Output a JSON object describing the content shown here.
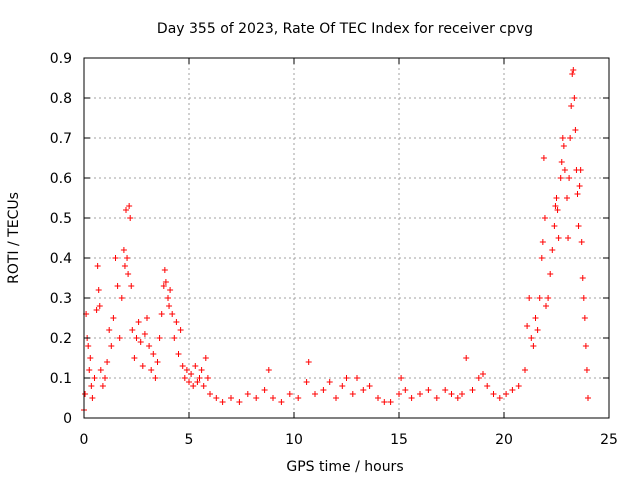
{
  "chart_data": {
    "type": "scatter",
    "title": "Day 355 of 2023, Rate Of TEC Index for receiver cpvg",
    "xlabel": "GPS time / hours",
    "ylabel": "ROTI / TECUs",
    "xlim": [
      0,
      25
    ],
    "ylim": [
      0,
      0.9
    ],
    "x_ticks": [
      0,
      5,
      10,
      15,
      20,
      25
    ],
    "y_ticks": [
      0,
      0.1,
      0.2,
      0.3,
      0.4,
      0.5,
      0.6,
      0.7,
      0.8,
      0.9
    ],
    "x_tick_labels": [
      "0",
      "5",
      "10",
      "15",
      "20",
      "25"
    ],
    "y_tick_labels": [
      "0",
      "0.1",
      "0.2",
      "0.3",
      "0.4",
      "0.5",
      "0.6",
      "0.7",
      "0.8",
      "0.9"
    ],
    "grid": true,
    "marker": "plus",
    "color": "#ff0000",
    "series": [
      {
        "points": [
          [
            0.0,
            0.02
          ],
          [
            0.05,
            0.06
          ],
          [
            0.1,
            0.26
          ],
          [
            0.15,
            0.2
          ],
          [
            0.2,
            0.18
          ],
          [
            0.25,
            0.12
          ],
          [
            0.3,
            0.15
          ],
          [
            0.35,
            0.08
          ],
          [
            0.4,
            0.05
          ],
          [
            0.5,
            0.1
          ],
          [
            0.6,
            0.27
          ],
          [
            0.65,
            0.38
          ],
          [
            0.7,
            0.32
          ],
          [
            0.75,
            0.28
          ],
          [
            0.8,
            0.12
          ],
          [
            0.9,
            0.08
          ],
          [
            1.0,
            0.1
          ],
          [
            1.1,
            0.14
          ],
          [
            1.2,
            0.22
          ],
          [
            1.3,
            0.18
          ],
          [
            1.4,
            0.25
          ],
          [
            1.5,
            0.4
          ],
          [
            1.6,
            0.33
          ],
          [
            1.7,
            0.2
          ],
          [
            1.8,
            0.3
          ],
          [
            1.9,
            0.42
          ],
          [
            1.95,
            0.38
          ],
          [
            2.0,
            0.52
          ],
          [
            2.05,
            0.4
          ],
          [
            2.1,
            0.36
          ],
          [
            2.15,
            0.53
          ],
          [
            2.2,
            0.5
          ],
          [
            2.25,
            0.33
          ],
          [
            2.3,
            0.22
          ],
          [
            2.4,
            0.15
          ],
          [
            2.5,
            0.2
          ],
          [
            2.6,
            0.24
          ],
          [
            2.7,
            0.19
          ],
          [
            2.8,
            0.13
          ],
          [
            2.9,
            0.21
          ],
          [
            3.0,
            0.25
          ],
          [
            3.1,
            0.18
          ],
          [
            3.2,
            0.12
          ],
          [
            3.3,
            0.16
          ],
          [
            3.4,
            0.1
          ],
          [
            3.5,
            0.14
          ],
          [
            3.6,
            0.2
          ],
          [
            3.7,
            0.26
          ],
          [
            3.8,
            0.33
          ],
          [
            3.85,
            0.37
          ],
          [
            3.9,
            0.34
          ],
          [
            4.0,
            0.3
          ],
          [
            4.05,
            0.28
          ],
          [
            4.1,
            0.32
          ],
          [
            4.2,
            0.26
          ],
          [
            4.3,
            0.2
          ],
          [
            4.4,
            0.24
          ],
          [
            4.5,
            0.16
          ],
          [
            4.6,
            0.22
          ],
          [
            4.7,
            0.13
          ],
          [
            4.8,
            0.1
          ],
          [
            4.9,
            0.12
          ],
          [
            5.0,
            0.09
          ],
          [
            5.1,
            0.11
          ],
          [
            5.2,
            0.08
          ],
          [
            5.3,
            0.13
          ],
          [
            5.4,
            0.09
          ],
          [
            5.5,
            0.1
          ],
          [
            5.6,
            0.12
          ],
          [
            5.7,
            0.08
          ],
          [
            5.8,
            0.15
          ],
          [
            5.9,
            0.1
          ],
          [
            6.0,
            0.06
          ],
          [
            6.3,
            0.05
          ],
          [
            6.6,
            0.04
          ],
          [
            7.0,
            0.05
          ],
          [
            7.4,
            0.04
          ],
          [
            7.8,
            0.06
          ],
          [
            8.2,
            0.05
          ],
          [
            8.6,
            0.07
          ],
          [
            8.8,
            0.12
          ],
          [
            9.0,
            0.05
          ],
          [
            9.4,
            0.04
          ],
          [
            9.8,
            0.06
          ],
          [
            10.2,
            0.05
          ],
          [
            10.6,
            0.09
          ],
          [
            10.7,
            0.14
          ],
          [
            11.0,
            0.06
          ],
          [
            11.4,
            0.07
          ],
          [
            11.7,
            0.09
          ],
          [
            12.0,
            0.05
          ],
          [
            12.3,
            0.08
          ],
          [
            12.5,
            0.1
          ],
          [
            12.8,
            0.06
          ],
          [
            13.0,
            0.1
          ],
          [
            13.3,
            0.07
          ],
          [
            13.6,
            0.08
          ],
          [
            14.0,
            0.05
          ],
          [
            14.3,
            0.04
          ],
          [
            14.6,
            0.04
          ],
          [
            15.0,
            0.06
          ],
          [
            15.1,
            0.1
          ],
          [
            15.3,
            0.07
          ],
          [
            15.6,
            0.05
          ],
          [
            16.0,
            0.06
          ],
          [
            16.4,
            0.07
          ],
          [
            16.8,
            0.05
          ],
          [
            17.2,
            0.07
          ],
          [
            17.5,
            0.06
          ],
          [
            17.8,
            0.05
          ],
          [
            18.0,
            0.06
          ],
          [
            18.2,
            0.15
          ],
          [
            18.5,
            0.07
          ],
          [
            18.8,
            0.1
          ],
          [
            19.0,
            0.11
          ],
          [
            19.2,
            0.08
          ],
          [
            19.5,
            0.06
          ],
          [
            19.8,
            0.05
          ],
          [
            20.1,
            0.06
          ],
          [
            20.4,
            0.07
          ],
          [
            20.7,
            0.08
          ],
          [
            21.0,
            0.12
          ],
          [
            21.1,
            0.23
          ],
          [
            21.2,
            0.3
          ],
          [
            21.3,
            0.2
          ],
          [
            21.4,
            0.18
          ],
          [
            21.5,
            0.25
          ],
          [
            21.6,
            0.22
          ],
          [
            21.7,
            0.3
          ],
          [
            21.8,
            0.4
          ],
          [
            21.85,
            0.44
          ],
          [
            21.9,
            0.65
          ],
          [
            21.95,
            0.5
          ],
          [
            22.0,
            0.28
          ],
          [
            22.1,
            0.3
          ],
          [
            22.2,
            0.36
          ],
          [
            22.3,
            0.42
          ],
          [
            22.4,
            0.48
          ],
          [
            22.45,
            0.53
          ],
          [
            22.5,
            0.55
          ],
          [
            22.55,
            0.52
          ],
          [
            22.6,
            0.45
          ],
          [
            22.7,
            0.6
          ],
          [
            22.75,
            0.64
          ],
          [
            22.8,
            0.7
          ],
          [
            22.85,
            0.68
          ],
          [
            22.9,
            0.62
          ],
          [
            23.0,
            0.55
          ],
          [
            23.05,
            0.45
          ],
          [
            23.1,
            0.6
          ],
          [
            23.15,
            0.7
          ],
          [
            23.2,
            0.78
          ],
          [
            23.25,
            0.86
          ],
          [
            23.3,
            0.87
          ],
          [
            23.35,
            0.8
          ],
          [
            23.4,
            0.72
          ],
          [
            23.45,
            0.62
          ],
          [
            23.5,
            0.56
          ],
          [
            23.55,
            0.48
          ],
          [
            23.6,
            0.58
          ],
          [
            23.65,
            0.62
          ],
          [
            23.7,
            0.44
          ],
          [
            23.75,
            0.35
          ],
          [
            23.8,
            0.3
          ],
          [
            23.85,
            0.25
          ],
          [
            23.9,
            0.18
          ],
          [
            23.95,
            0.12
          ],
          [
            24.0,
            0.05
          ]
        ]
      }
    ]
  }
}
